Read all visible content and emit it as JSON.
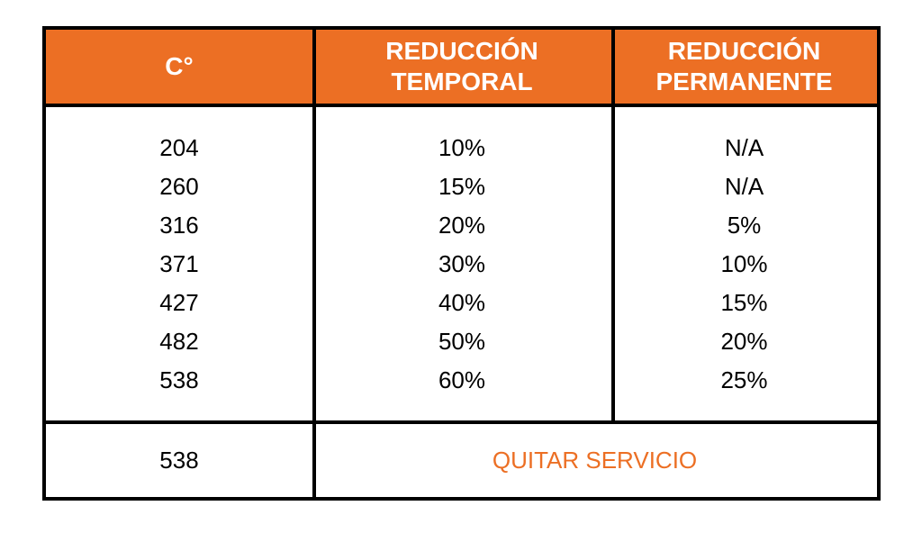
{
  "table": {
    "headers": {
      "temperature": "C°",
      "temporary": "REDUCCIÓN\nTEMPORAL",
      "permanent": "REDUCCIÓN\nPERMANENTE"
    },
    "rows": [
      {
        "temp": "204",
        "temporary": "10%",
        "permanent": "N/A"
      },
      {
        "temp": "260",
        "temporary": "15%",
        "permanent": "N/A"
      },
      {
        "temp": "316",
        "temporary": "20%",
        "permanent": "5%"
      },
      {
        "temp": "371",
        "temporary": "30%",
        "permanent": "10%"
      },
      {
        "temp": "427",
        "temporary": "40%",
        "permanent": "15%"
      },
      {
        "temp": "482",
        "temporary": "50%",
        "permanent": "20%"
      },
      {
        "temp": "538",
        "temporary": "60%",
        "permanent": "25%"
      }
    ],
    "footer": {
      "temp": "538",
      "action": "QUITAR SERVICIO"
    }
  },
  "colors": {
    "accent": "#ec6f24",
    "border": "#000000",
    "header_text": "#ffffff"
  }
}
